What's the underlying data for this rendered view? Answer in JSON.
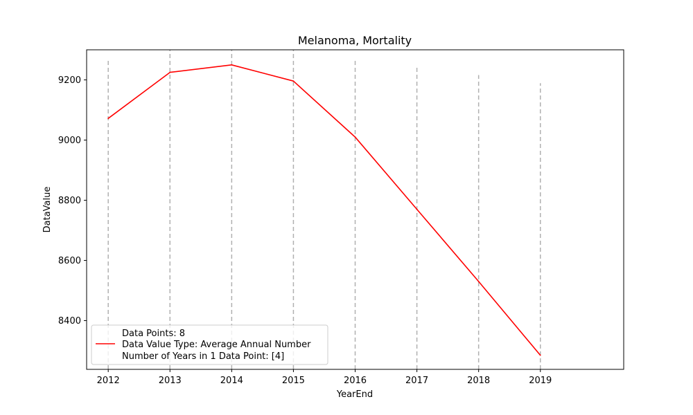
{
  "chart_data": {
    "type": "line",
    "title": "Melanoma, Mortality",
    "xlabel": "YearEnd",
    "ylabel": "DataValue",
    "x": [
      2012,
      2013,
      2014,
      2015,
      2016,
      2017,
      2018,
      2019
    ],
    "series": [
      {
        "name": "Data Value Type: Average Annual Number",
        "values": [
          9072,
          9225,
          9250,
          9196,
          9010,
          8770,
          8530,
          8285
        ],
        "color": "#ff0000"
      }
    ],
    "xlim": [
      2011.65,
      2020.35
    ],
    "ylim": [
      8238,
      9300
    ],
    "xticks": [
      "2012",
      "2013",
      "2014",
      "2015",
      "2016",
      "2017",
      "2018",
      "2019"
    ],
    "yticks": [
      "8400",
      "8600",
      "8800",
      "9000",
      "9200"
    ],
    "vertical_dashed_lines": [
      {
        "x": 2012,
        "top": 9268
      },
      {
        "x": 2013,
        "top": 9300
      },
      {
        "x": 2014,
        "top": 9300
      },
      {
        "x": 2015,
        "top": 9300
      },
      {
        "x": 2016,
        "top": 9268
      },
      {
        "x": 2017,
        "top": 9243
      },
      {
        "x": 2018,
        "top": 9216
      },
      {
        "x": 2019,
        "top": 9189
      }
    ],
    "dash_line_color": "#b0b0b0",
    "grid": false,
    "legend": {
      "placement": "lower-left",
      "lines": [
        "Data Points: 8",
        "Data Value Type: Average Annual Number",
        "Number of Years in 1 Data Point: [4]"
      ]
    }
  }
}
